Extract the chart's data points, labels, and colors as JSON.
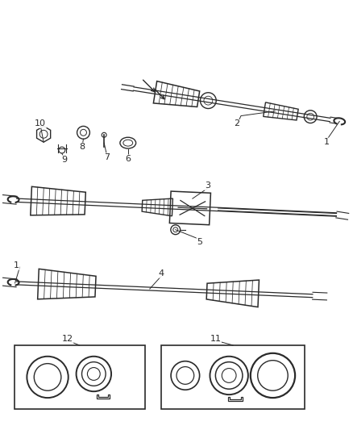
{
  "bg_color": "#ffffff",
  "fig_width": 4.38,
  "fig_height": 5.33,
  "dpi": 100,
  "line_color": "#2a2a2a",
  "text_color": "#2a2a2a",
  "label_fontsize": 8.0
}
